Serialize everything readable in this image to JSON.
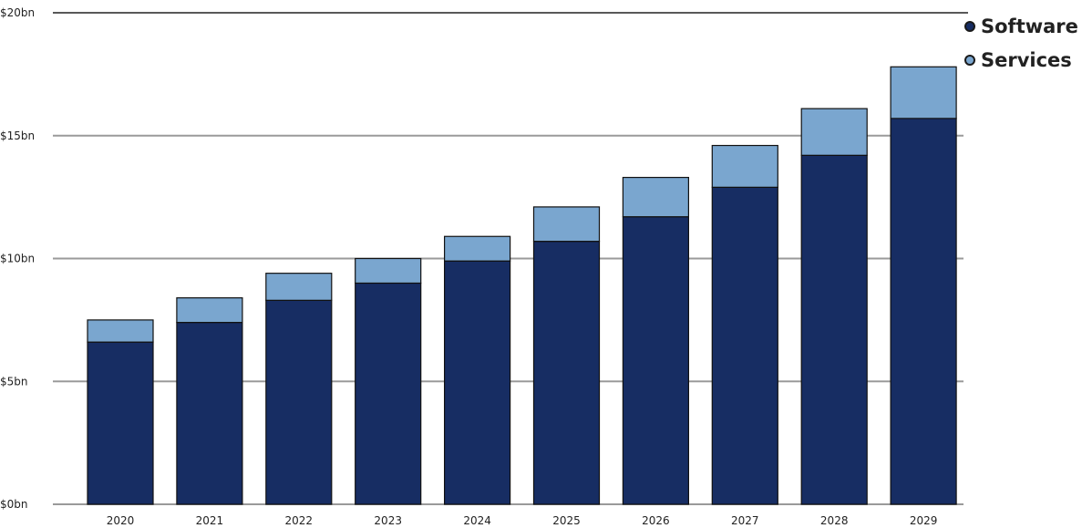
{
  "chart_data": {
    "type": "bar",
    "stacked": true,
    "title": "",
    "xlabel": "",
    "ylabel": "",
    "categories": [
      "2020",
      "2021",
      "2022",
      "2023",
      "2024",
      "2025",
      "2026",
      "2027",
      "2028",
      "2029"
    ],
    "series": [
      {
        "name": "Software",
        "color": "#172d63",
        "values": [
          6.6,
          7.4,
          8.3,
          9.0,
          9.9,
          10.7,
          11.7,
          12.9,
          14.2,
          15.7
        ]
      },
      {
        "name": "Services",
        "color": "#7aa6cf",
        "values": [
          0.9,
          1.0,
          1.1,
          1.0,
          1.0,
          1.4,
          1.6,
          1.7,
          1.9,
          2.1
        ]
      }
    ],
    "ylim": [
      0,
      20
    ],
    "yticks": [
      0,
      5,
      10,
      15,
      20
    ],
    "ytick_labels": [
      "$0bn",
      "$5bn",
      "$10bn",
      "$15bn",
      "$20bn"
    ],
    "grid": true,
    "legend_position": "top-right"
  }
}
